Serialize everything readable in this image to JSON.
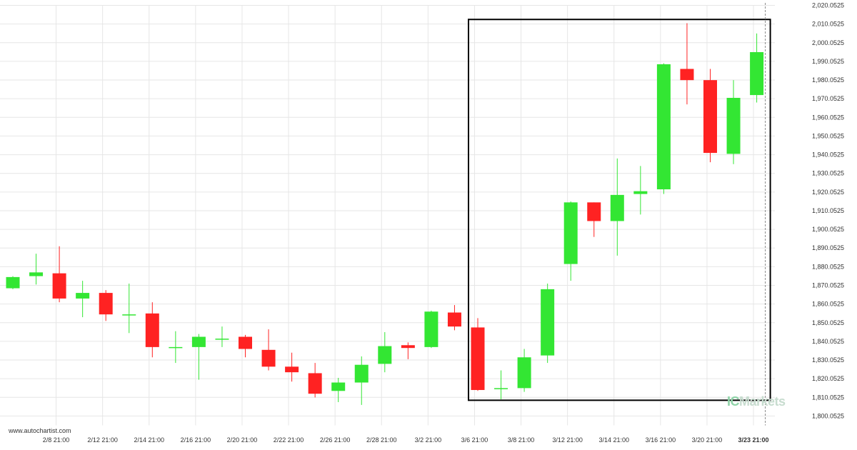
{
  "source": "www.autochartist.com",
  "brand": {
    "prefix": "IC",
    "suffix": "Markets"
  },
  "colors": {
    "up": "#33e633",
    "down": "#ff2222",
    "pattern_box": "#000000",
    "grid": "#e6e6e6",
    "current_line": "#888888"
  },
  "chart_data": {
    "type": "candlestick",
    "title": "",
    "xlabel": "",
    "ylabel": "",
    "ylim": [
      1795.0525,
      2020.0525
    ],
    "y_ticks": [
      "2,020.0525",
      "2,010.0525",
      "2,000.0525",
      "1,990.0525",
      "1,980.0525",
      "1,970.0525",
      "1,960.0525",
      "1,950.0525",
      "1,940.0525",
      "1,930.0525",
      "1,920.0525",
      "1,910.0525",
      "1,900.0525",
      "1,890.0525",
      "1,880.0525",
      "1,870.0525",
      "1,860.0525",
      "1,850.0525",
      "1,840.0525",
      "1,830.0525",
      "1,820.0525",
      "1,810.0525",
      "1,800.0525"
    ],
    "x_ticks": [
      "2/8 21:00",
      "2/12 21:00",
      "2/14 21:00",
      "2/16 21:00",
      "2/20 21:00",
      "2/22 21:00",
      "2/26 21:00",
      "2/28 21:00",
      "3/2 21:00",
      "3/6 21:00",
      "3/8 21:00",
      "3/12 21:00",
      "3/14 21:00",
      "3/16 21:00",
      "3/20 21:00",
      "3/23 21:00"
    ],
    "highlight_tick": "3/23 21:00",
    "candles": [
      {
        "o": 1868.5,
        "h": 1875.0,
        "l": 1868.0,
        "c": 1874.5
      },
      {
        "o": 1875.0,
        "h": 1887.0,
        "l": 1870.5,
        "c": 1877.0
      },
      {
        "o": 1876.5,
        "h": 1891.0,
        "l": 1861.0,
        "c": 1863.0
      },
      {
        "o": 1863.0,
        "h": 1872.5,
        "l": 1853.0,
        "c": 1866.0
      },
      {
        "o": 1866.0,
        "h": 1867.5,
        "l": 1851.0,
        "c": 1854.5
      },
      {
        "o": 1854.5,
        "h": 1871.0,
        "l": 1844.5,
        "c": 1854.5
      },
      {
        "o": 1855.0,
        "h": 1861.0,
        "l": 1831.5,
        "c": 1837.0
      },
      {
        "o": 1837.0,
        "h": 1845.5,
        "l": 1828.5,
        "c": 1837.0
      },
      {
        "o": 1837.0,
        "h": 1844.0,
        "l": 1819.5,
        "c": 1842.5
      },
      {
        "o": 1841.5,
        "h": 1848.0,
        "l": 1837.0,
        "c": 1841.5
      },
      {
        "o": 1842.5,
        "h": 1843.5,
        "l": 1831.5,
        "c": 1836.0
      },
      {
        "o": 1835.5,
        "h": 1846.5,
        "l": 1824.5,
        "c": 1826.5
      },
      {
        "o": 1826.5,
        "h": 1834.0,
        "l": 1818.5,
        "c": 1823.5
      },
      {
        "o": 1823.0,
        "h": 1828.5,
        "l": 1810.0,
        "c": 1812.0
      },
      {
        "o": 1813.5,
        "h": 1820.5,
        "l": 1807.5,
        "c": 1818.0
      },
      {
        "o": 1818.0,
        "h": 1832.0,
        "l": 1806.0,
        "c": 1827.5
      },
      {
        "o": 1828.0,
        "h": 1845.0,
        "l": 1823.5,
        "c": 1837.5
      },
      {
        "o": 1838.0,
        "h": 1839.5,
        "l": 1830.5,
        "c": 1836.5
      },
      {
        "o": 1837.0,
        "h": 1856.5,
        "l": 1836.5,
        "c": 1856.0
      },
      {
        "o": 1855.5,
        "h": 1859.5,
        "l": 1846.0,
        "c": 1848.0
      },
      {
        "o": 1847.5,
        "h": 1852.5,
        "l": 1813.5,
        "c": 1814.0
      },
      {
        "o": 1814.5,
        "h": 1824.5,
        "l": 1809.0,
        "c": 1815.0
      },
      {
        "o": 1815.0,
        "h": 1836.0,
        "l": 1813.0,
        "c": 1831.5
      },
      {
        "o": 1832.5,
        "h": 1871.0,
        "l": 1828.5,
        "c": 1868.0
      },
      {
        "o": 1881.5,
        "h": 1915.0,
        "l": 1872.5,
        "c": 1914.5
      },
      {
        "o": 1914.5,
        "h": 1914.5,
        "l": 1896.0,
        "c": 1904.5
      },
      {
        "o": 1904.5,
        "h": 1938.0,
        "l": 1886.0,
        "c": 1918.5
      },
      {
        "o": 1919.0,
        "h": 1934.0,
        "l": 1908.0,
        "c": 1920.5
      },
      {
        "o": 1921.5,
        "h": 1989.0,
        "l": 1919.0,
        "c": 1988.5
      },
      {
        "o": 1986.0,
        "h": 2010.5,
        "l": 1967.0,
        "c": 1980.0
      },
      {
        "o": 1980.0,
        "h": 1986.0,
        "l": 1936.0,
        "c": 1941.0
      },
      {
        "o": 1940.5,
        "h": 1980.0,
        "l": 1935.0,
        "c": 1970.5
      },
      {
        "o": 1972.0,
        "h": 2005.0,
        "l": 1968.0,
        "c": 1995.0
      }
    ],
    "pattern_box": {
      "from_index": 20,
      "to_index": 32,
      "top": 2012.5,
      "bottom": 1808.5
    }
  }
}
